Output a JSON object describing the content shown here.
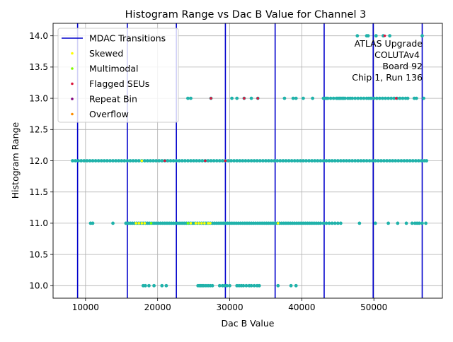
{
  "chart_data": {
    "type": "scatter",
    "title": "Histogram Range vs Dac B Value for Channel 3",
    "xlabel": "Dac B Value",
    "ylabel": "Histogram Range",
    "xlim": [
      5500,
      59500
    ],
    "ylim": [
      9.8,
      14.2
    ],
    "x_ticks": [
      10000,
      20000,
      30000,
      40000,
      50000
    ],
    "x_tick_labels": [
      "10000",
      "20000",
      "30000",
      "40000",
      "50000"
    ],
    "y_ticks": [
      10.0,
      10.5,
      11.0,
      11.5,
      12.0,
      12.5,
      13.0,
      13.5,
      14.0
    ],
    "y_tick_labels": [
      "10.0",
      "10.5",
      "11.0",
      "11.5",
      "12.0",
      "12.5",
      "13.0",
      "13.5",
      "14.0"
    ],
    "grid": true,
    "legend_position": "upper-left",
    "legend": [
      {
        "label": "MDAC Transitions",
        "kind": "line",
        "color": "#0000cc"
      },
      {
        "label": "Skewed",
        "kind": "marker",
        "color": "#ffff00"
      },
      {
        "label": "Multimodal",
        "kind": "marker",
        "color": "#7fff00"
      },
      {
        "label": "Flagged SEUs",
        "kind": "marker",
        "color": "#dc143c"
      },
      {
        "label": "Repeat Bin",
        "kind": "marker",
        "color": "#800080"
      },
      {
        "label": "Overflow",
        "kind": "marker",
        "color": "#ff8c00"
      }
    ],
    "annotation": [
      "ATLAS Upgrade",
      "COLUTAv4",
      "Board 92",
      "Chip 1, Run 136"
    ],
    "mdac_transitions": [
      8900,
      15800,
      22600,
      29400,
      36300,
      43100,
      49900,
      56700
    ],
    "main_point_color": "#20b2aa",
    "main_series": [
      {
        "y": 14.0,
        "x": [
          47700,
          49000,
          49200,
          50300,
          51300,
          52200,
          56700
        ]
      },
      {
        "y": 13.0,
        "x": [
          24200,
          24600,
          27400,
          30300,
          31000,
          32000,
          33000,
          33900,
          37600,
          38800,
          39200,
          40200,
          41500,
          43000,
          43200,
          43400,
          43600,
          44000,
          44400,
          44800,
          45000,
          45200,
          45400,
          45600,
          45800,
          46000,
          46400,
          46700,
          47000,
          47400,
          47800,
          48200,
          48600,
          49000,
          49300,
          49600,
          50000,
          50400,
          50800,
          51200,
          51600,
          52000,
          52400,
          52800,
          53200,
          53600,
          54000,
          54400,
          54700,
          55600,
          55900,
          56900
        ]
      },
      {
        "y": 12.0,
        "x": [
          8200,
          8600,
          9000,
          9400,
          9800,
          10200,
          10600,
          11000,
          11400,
          11800,
          12200,
          12600,
          13000,
          13400,
          13800,
          14200,
          14600,
          15000,
          15400,
          15800,
          16200,
          16600,
          17000,
          17400,
          17800,
          18200,
          18600,
          19000,
          19400,
          19800,
          20200,
          20600,
          21000,
          21400,
          21800,
          22200,
          22600,
          23000,
          23400,
          23800,
          24200,
          24600,
          25000,
          25400,
          25800,
          26200,
          26600,
          27000,
          27400,
          27800,
          28200,
          28600,
          29000,
          29400,
          29800,
          30200,
          30600,
          31000,
          31400,
          31800,
          32200,
          32600,
          33000,
          33400,
          33800,
          34200,
          34600,
          35000,
          35400,
          35800,
          36200,
          36600,
          37000,
          37400,
          37800,
          38200,
          38600,
          39000,
          39400,
          39800,
          40200,
          40600,
          41000,
          41400,
          41800,
          42200,
          42600,
          43000,
          43400,
          43800,
          44200,
          44600,
          45000,
          45400,
          45800,
          46200,
          46600,
          47000,
          47400,
          47800,
          48200,
          48600,
          49000,
          49400,
          49800,
          50200,
          50600,
          51000,
          51400,
          51800,
          52200,
          52600,
          53000,
          53400,
          53800,
          54200,
          54600,
          55000,
          55400,
          55800,
          56200,
          56600,
          57000,
          57300
        ]
      },
      {
        "y": 11.0,
        "x": [
          10700,
          11000,
          13800,
          15600,
          15900,
          16200,
          16500,
          16800,
          17100,
          17400,
          17700,
          18000,
          18300,
          18600,
          18900,
          19200,
          19500,
          19800,
          20100,
          20400,
          20700,
          21000,
          21300,
          21600,
          21900,
          22200,
          22500,
          22800,
          23100,
          23400,
          23700,
          24000,
          24300,
          24600,
          24900,
          25200,
          25500,
          25800,
          26100,
          26400,
          26700,
          27000,
          27300,
          27600,
          27900,
          28200,
          28500,
          28800,
          29100,
          29400,
          29700,
          30000,
          30300,
          30600,
          30900,
          31200,
          31500,
          31800,
          32100,
          32400,
          32700,
          33000,
          33300,
          33600,
          33900,
          34200,
          34500,
          34800,
          35100,
          35400,
          35700,
          36000,
          36300,
          36600,
          36900,
          37200,
          37500,
          37800,
          38100,
          38400,
          38700,
          39000,
          39300,
          39600,
          39900,
          40200,
          40500,
          40800,
          41100,
          41400,
          41700,
          42000,
          42300,
          42600,
          43000,
          43400,
          43800,
          44200,
          44600,
          45000,
          45400,
          48000,
          50200,
          52000,
          53300,
          54500,
          55300,
          55700,
          56000,
          56300,
          56700,
          57200
        ]
      },
      {
        "y": 10.0,
        "x": [
          18000,
          18300,
          18800,
          19500,
          20600,
          21200,
          25600,
          25800,
          26000,
          26200,
          26400,
          26700,
          27000,
          27300,
          27600,
          28600,
          29000,
          29300,
          29600,
          30000,
          31000,
          31300,
          31600,
          31900,
          32300,
          32700,
          33000,
          33400,
          33800,
          34100,
          36700,
          38500,
          39200
        ]
      }
    ],
    "flag_series": [
      {
        "name": "Skewed",
        "color": "#ffff00",
        "points": [
          [
            17000,
            11.0
          ],
          [
            17400,
            11.0
          ],
          [
            17800,
            11.0
          ],
          [
            18200,
            11.0
          ],
          [
            24600,
            11.0
          ],
          [
            25300,
            11.0
          ],
          [
            25700,
            11.0
          ],
          [
            26100,
            11.0
          ],
          [
            26500,
            11.0
          ],
          [
            27000,
            11.0
          ],
          [
            27300,
            11.0
          ],
          [
            17800,
            12.0
          ],
          [
            36700,
            11.0
          ]
        ]
      },
      {
        "name": "Multimodal",
        "color": "#7fff00",
        "points": [
          [
            19100,
            11.0
          ],
          [
            24200,
            11.0
          ]
        ]
      },
      {
        "name": "Flagged SEUs",
        "color": "#dc143c",
        "points": [
          [
            51500,
            14.0
          ],
          [
            27400,
            13.0
          ],
          [
            32000,
            13.0
          ],
          [
            33900,
            13.0
          ],
          [
            53100,
            13.0
          ],
          [
            21000,
            12.0
          ],
          [
            26600,
            12.0
          ],
          [
            29400,
            12.0
          ]
        ]
      },
      {
        "name": "Repeat Bin",
        "color": "#800080",
        "points": []
      },
      {
        "name": "Overflow",
        "color": "#ff8c00",
        "points": []
      }
    ]
  }
}
